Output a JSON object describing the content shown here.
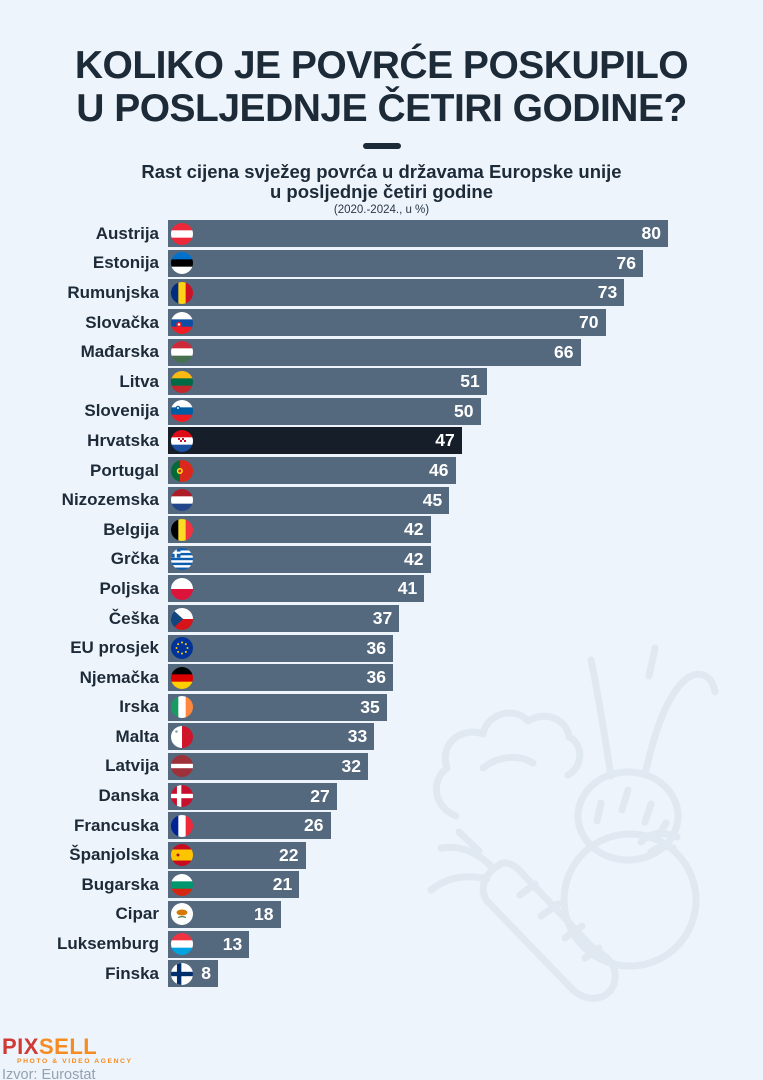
{
  "page": {
    "background": "#edf4fb",
    "text_color": "#1d2a38"
  },
  "header": {
    "title_line1": "KOLIKO JE POVRĆE POSKUPILO",
    "title_line2": "U POSLJEDNJE ČETIRI GODINE?",
    "subtitle_line1": "Rast cijena svježeg povrća u državama Europske unije",
    "subtitle_line2": "u posljednje četiri godine",
    "note": "(2020.-2024., u %)"
  },
  "chart_data": {
    "type": "bar",
    "orientation": "horizontal",
    "title": "Rast cijena svježeg povrća u državama Europske unije u posljednje četiri godine",
    "period": "2020.-2024.",
    "unit": "%",
    "xlim": [
      0,
      80
    ],
    "grid": false,
    "value_labels": "inside-end",
    "bar_color": "#55697e",
    "highlight_color": "#151e29",
    "highlight_category": "Hrvatska",
    "categories": [
      "Austrija",
      "Estonija",
      "Rumunjska",
      "Slovačka",
      "Mađarska",
      "Litva",
      "Slovenija",
      "Hrvatska",
      "Portugal",
      "Nizozemska",
      "Belgija",
      "Grčka",
      "Poljska",
      "Češka",
      "EU prosjek",
      "Njemačka",
      "Irska",
      "Malta",
      "Latvija",
      "Danska",
      "Francuska",
      "Španjolska",
      "Bugarska",
      "Cipar",
      "Luksemburg",
      "Finska"
    ],
    "values": [
      80,
      76,
      73,
      70,
      66,
      51,
      50,
      47,
      46,
      45,
      42,
      42,
      41,
      37,
      36,
      36,
      35,
      33,
      32,
      27,
      26,
      22,
      21,
      18,
      13,
      8
    ],
    "flag_icons": [
      "austria-flag-icon",
      "estonia-flag-icon",
      "romania-flag-icon",
      "slovakia-flag-icon",
      "hungary-flag-icon",
      "lithuania-flag-icon",
      "slovenia-flag-icon",
      "croatia-flag-icon",
      "portugal-flag-icon",
      "netherlands-flag-icon",
      "belgium-flag-icon",
      "greece-flag-icon",
      "poland-flag-icon",
      "czechia-flag-icon",
      "eu-flag-icon",
      "germany-flag-icon",
      "ireland-flag-icon",
      "malta-flag-icon",
      "latvia-flag-icon",
      "denmark-flag-icon",
      "france-flag-icon",
      "spain-flag-icon",
      "bulgaria-flag-icon",
      "cyprus-flag-icon",
      "luxembourg-flag-icon",
      "finland-flag-icon"
    ],
    "flags": [
      {
        "t": "bands",
        "dir": "h",
        "c": [
          "#ed2939",
          "#ffffff",
          "#ed2939"
        ]
      },
      {
        "t": "bands",
        "dir": "h",
        "c": [
          "#0072ce",
          "#000000",
          "#ffffff"
        ]
      },
      {
        "t": "bands",
        "dir": "v",
        "c": [
          "#002b7f",
          "#fcd116",
          "#ce1126"
        ]
      },
      {
        "t": "bands",
        "dir": "h",
        "c": [
          "#ffffff",
          "#0b4ea2",
          "#ee1c25"
        ],
        "ov": [
          {
            "s": "circle",
            "x": 8,
            "y": 12.5,
            "r": 2.8,
            "f": "#ee1c25"
          },
          {
            "s": "circle",
            "x": 8,
            "y": 12.5,
            "r": 1.2,
            "f": "#ffffff"
          }
        ]
      },
      {
        "t": "bands",
        "dir": "h",
        "c": [
          "#ce2939",
          "#ffffff",
          "#477050"
        ]
      },
      {
        "t": "bands",
        "dir": "h",
        "c": [
          "#fdb913",
          "#006a44",
          "#c1272d"
        ]
      },
      {
        "t": "bands",
        "dir": "h",
        "c": [
          "#ffffff",
          "#005da4",
          "#ed1c24"
        ],
        "ov": [
          {
            "s": "circle",
            "x": 7,
            "y": 8,
            "r": 2.3,
            "f": "#005da4"
          },
          {
            "s": "circle",
            "x": 7,
            "y": 8,
            "r": 1,
            "f": "#ffffff"
          }
        ]
      },
      {
        "t": "bands",
        "dir": "h",
        "c": [
          "#dd0c15",
          "#ffffff",
          "#1b4fa0"
        ],
        "ov": [
          {
            "s": "checker"
          }
        ]
      },
      {
        "t": "bands",
        "dir": "v",
        "c": [
          "#046a38",
          "#da291c"
        ],
        "w": [
          2,
          3
        ],
        "ov": [
          {
            "s": "circle",
            "x": 8.8,
            "y": 11,
            "r": 3,
            "f": "#ffe900"
          },
          {
            "s": "circle",
            "x": 8.8,
            "y": 11,
            "r": 1.5,
            "f": "#da291c"
          }
        ]
      },
      {
        "t": "bands",
        "dir": "h",
        "c": [
          "#ae1c28",
          "#ffffff",
          "#21468b"
        ]
      },
      {
        "t": "bands",
        "dir": "v",
        "c": [
          "#000000",
          "#fdda24",
          "#ef3340"
        ]
      },
      {
        "t": "bands",
        "dir": "h",
        "c": [
          "#0d5eaf",
          "#ffffff",
          "#0d5eaf",
          "#ffffff",
          "#0d5eaf",
          "#ffffff",
          "#0d5eaf",
          "#ffffff",
          "#0d5eaf"
        ],
        "ov": [
          {
            "s": "canton",
            "f": "#0d5eaf"
          }
        ]
      },
      {
        "t": "bands",
        "dir": "h",
        "c": [
          "#ffffff",
          "#dc143c"
        ]
      },
      {
        "t": "bands",
        "dir": "h",
        "c": [
          "#ffffff",
          "#d7141a"
        ],
        "ov": [
          {
            "s": "tri",
            "f": "#11457e"
          }
        ]
      },
      {
        "t": "eu",
        "bg": "#003399",
        "fg": "#ffcc00"
      },
      {
        "t": "bands",
        "dir": "h",
        "c": [
          "#000000",
          "#dd0000",
          "#ffce00"
        ]
      },
      {
        "t": "bands",
        "dir": "v",
        "c": [
          "#169b62",
          "#ffffff",
          "#ff883e"
        ]
      },
      {
        "t": "bands",
        "dir": "v",
        "c": [
          "#ffffff",
          "#cf142b"
        ],
        "ov": [
          {
            "s": "circle",
            "x": 5.5,
            "y": 5.5,
            "r": 1.3,
            "f": "#9aa0a6"
          }
        ]
      },
      {
        "t": "bands",
        "dir": "h",
        "c": [
          "#9e3039",
          "#ffffff",
          "#9e3039"
        ],
        "w": [
          2,
          1,
          2
        ]
      },
      {
        "t": "cross",
        "bg": "#c8102e",
        "fg": "#ffffff"
      },
      {
        "t": "bands",
        "dir": "v",
        "c": [
          "#002395",
          "#ffffff",
          "#ed2939"
        ]
      },
      {
        "t": "bands",
        "dir": "h",
        "c": [
          "#c60b1e",
          "#ffc400",
          "#c60b1e"
        ],
        "w": [
          1,
          2,
          1
        ],
        "ov": [
          {
            "s": "circle",
            "x": 7,
            "y": 11,
            "r": 1.5,
            "f": "#ad1519"
          }
        ]
      },
      {
        "t": "bands",
        "dir": "h",
        "c": [
          "#ffffff",
          "#00966e",
          "#d62612"
        ]
      },
      {
        "t": "cyprus",
        "bg": "#ffffff",
        "land": "#d57800",
        "olive": "#4f7942"
      },
      {
        "t": "bands",
        "dir": "h",
        "c": [
          "#ef3340",
          "#ffffff",
          "#00a3e0"
        ]
      },
      {
        "t": "cross",
        "bg": "#ffffff",
        "fg": "#002f6c"
      }
    ]
  },
  "footer": {
    "logo_pix": "PIX",
    "logo_sell": "SELL",
    "logo_pix_color": "#d03a35",
    "logo_sell_color": "#f68b1f",
    "logo_tagline": "PHOTO & VIDEO AGENCY",
    "source": "Izvor: Eurostat"
  }
}
